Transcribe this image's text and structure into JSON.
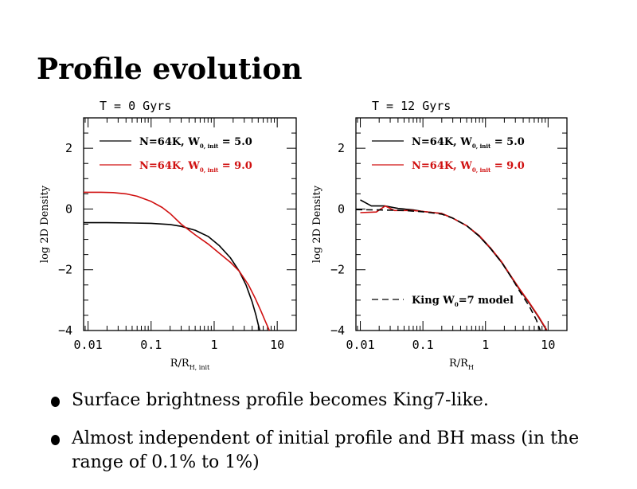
{
  "slide": {
    "title": "Profile evolution",
    "bullets": [
      "Surface brightness profile becomes King7-like.",
      "Almost independent of initial profile and BH mass (in the range of 0.1% to 1%)"
    ]
  },
  "colors": {
    "black": "#000000",
    "red": "#d01010"
  },
  "chart_data": [
    {
      "type": "line",
      "title": "T = 0 Gyrs",
      "xlabel": "R/R",
      "xlabel_sub": "H, init",
      "ylabel": "log 2D Density",
      "xscale": "log",
      "xlim": [
        0.0085,
        20
      ],
      "ylim": [
        -4,
        3
      ],
      "x_ticks": [
        0.01,
        0.1,
        1,
        10
      ],
      "x_tick_labels": [
        "0.01",
        "0.1",
        "1",
        "10"
      ],
      "y_ticks": [
        -4,
        -2,
        0,
        2
      ],
      "y_tick_labels": [
        "−4",
        "−2",
        "0",
        "2"
      ],
      "legend_position": "top-right",
      "series": [
        {
          "name": "N=64K, W",
          "name_sub": "0, init",
          "name_suffix": " = 5.0",
          "color": "#000000",
          "dash": "solid",
          "x": [
            0.0085,
            0.02,
            0.05,
            0.1,
            0.2,
            0.3,
            0.5,
            0.8,
            1.2,
            1.8,
            2.5,
            3.2,
            4.0,
            4.6,
            5.0,
            5.3
          ],
          "y": [
            -0.45,
            -0.45,
            -0.46,
            -0.47,
            -0.51,
            -0.57,
            -0.7,
            -0.9,
            -1.2,
            -1.6,
            -2.05,
            -2.5,
            -3.05,
            -3.5,
            -3.8,
            -4.0
          ]
        },
        {
          "name": "N=64K, W",
          "name_sub": "0, init",
          "name_suffix": " = 9.0",
          "color": "#d01010",
          "dash": "solid",
          "x": [
            0.0085,
            0.015,
            0.025,
            0.04,
            0.06,
            0.1,
            0.15,
            0.2,
            0.3,
            0.5,
            0.8,
            1.2,
            1.8,
            2.5,
            3.5,
            4.5,
            5.5,
            6.5,
            7.5
          ],
          "y": [
            0.55,
            0.55,
            0.54,
            0.5,
            0.42,
            0.25,
            0.05,
            -0.15,
            -0.5,
            -0.85,
            -1.15,
            -1.45,
            -1.75,
            -2.05,
            -2.5,
            -2.95,
            -3.35,
            -3.7,
            -4.0
          ]
        }
      ]
    },
    {
      "type": "line",
      "title": "T = 12 Gyrs",
      "xlabel": "R/R",
      "xlabel_sub": "H",
      "ylabel": "log 2D Density",
      "xscale": "log",
      "xlim": [
        0.0085,
        20
      ],
      "ylim": [
        -4,
        3
      ],
      "x_ticks": [
        0.01,
        0.1,
        1,
        10
      ],
      "x_tick_labels": [
        "0.01",
        "0.1",
        "1",
        "10"
      ],
      "y_ticks": [
        -4,
        -2,
        0,
        2
      ],
      "y_tick_labels": [
        "−4",
        "−2",
        "0",
        "2"
      ],
      "legend_position": "top-right",
      "series": [
        {
          "name": "N=64K, W",
          "name_sub": "0, init",
          "name_suffix": " = 5.0",
          "color": "#000000",
          "dash": "solid",
          "x": [
            0.01,
            0.015,
            0.025,
            0.04,
            0.07,
            0.1,
            0.2,
            0.3,
            0.5,
            0.8,
            1.2,
            1.8,
            2.5,
            3.5,
            5.0,
            7.0,
            9.5
          ],
          "y": [
            0.3,
            0.1,
            0.1,
            0.02,
            -0.03,
            -0.08,
            -0.15,
            -0.3,
            -0.55,
            -0.9,
            -1.3,
            -1.75,
            -2.2,
            -2.65,
            -3.1,
            -3.55,
            -4.0
          ]
        },
        {
          "name": "N=64K, W",
          "name_sub": "0, init",
          "name_suffix": " = 9.0",
          "color": "#d01010",
          "dash": "solid",
          "x": [
            0.01,
            0.018,
            0.025,
            0.035,
            0.05,
            0.07,
            0.1,
            0.2,
            0.3,
            0.5,
            0.8,
            1.2,
            1.8,
            2.5,
            3.5,
            5.0,
            7.0,
            9.5
          ],
          "y": [
            -0.12,
            -0.1,
            0.1,
            -0.05,
            -0.05,
            -0.05,
            -0.08,
            -0.15,
            -0.3,
            -0.55,
            -0.88,
            -1.28,
            -1.73,
            -2.18,
            -2.63,
            -3.08,
            -3.53,
            -3.98
          ]
        },
        {
          "name": "King W",
          "name_sub": "0",
          "name_suffix": "=7 model",
          "color": "#000000",
          "dash": "dashed",
          "x": [
            0.0085,
            0.02,
            0.05,
            0.1,
            0.2,
            0.3,
            0.5,
            0.8,
            1.2,
            1.8,
            2.5,
            3.5,
            5.0,
            6.5,
            7.5
          ],
          "y": [
            -0.02,
            -0.03,
            -0.05,
            -0.09,
            -0.17,
            -0.3,
            -0.55,
            -0.9,
            -1.3,
            -1.75,
            -2.2,
            -2.7,
            -3.2,
            -3.65,
            -4.0
          ]
        }
      ]
    }
  ]
}
